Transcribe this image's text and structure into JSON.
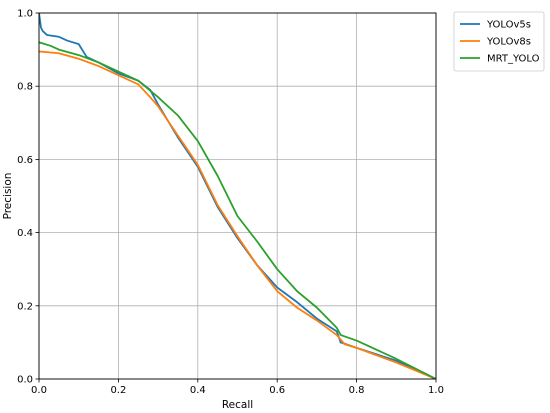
{
  "chart_data": {
    "type": "line",
    "xlabel": "Recall",
    "ylabel": "Precision",
    "xlim": [
      0.0,
      1.0
    ],
    "ylim": [
      0.0,
      1.0
    ],
    "x_ticks": [
      "0.0",
      "0.2",
      "0.4",
      "0.6",
      "0.8",
      "1.0"
    ],
    "y_ticks": [
      "0.0",
      "0.2",
      "0.4",
      "0.6",
      "0.8",
      "1.0"
    ],
    "grid": true,
    "legend_position": "outside top-right",
    "series": [
      {
        "name": "YOLOv5s",
        "color": "#1f77b4",
        "points": [
          [
            0.0,
            1.0
          ],
          [
            0.005,
            0.96
          ],
          [
            0.01,
            0.95
          ],
          [
            0.02,
            0.94
          ],
          [
            0.05,
            0.935
          ],
          [
            0.06,
            0.93
          ],
          [
            0.07,
            0.925
          ],
          [
            0.1,
            0.915
          ],
          [
            0.12,
            0.88
          ],
          [
            0.15,
            0.865
          ],
          [
            0.2,
            0.835
          ],
          [
            0.25,
            0.815
          ],
          [
            0.28,
            0.79
          ],
          [
            0.3,
            0.75
          ],
          [
            0.35,
            0.66
          ],
          [
            0.4,
            0.58
          ],
          [
            0.45,
            0.47
          ],
          [
            0.5,
            0.385
          ],
          [
            0.55,
            0.31
          ],
          [
            0.6,
            0.25
          ],
          [
            0.65,
            0.21
          ],
          [
            0.7,
            0.165
          ],
          [
            0.75,
            0.13
          ],
          [
            0.76,
            0.1
          ],
          [
            0.8,
            0.085
          ],
          [
            0.9,
            0.05
          ],
          [
            1.0,
            0.0
          ]
        ]
      },
      {
        "name": "YOLOv8s",
        "color": "#ff7f0e",
        "points": [
          [
            0.0,
            0.895
          ],
          [
            0.05,
            0.89
          ],
          [
            0.1,
            0.875
          ],
          [
            0.15,
            0.855
          ],
          [
            0.2,
            0.83
          ],
          [
            0.25,
            0.805
          ],
          [
            0.28,
            0.77
          ],
          [
            0.3,
            0.745
          ],
          [
            0.35,
            0.665
          ],
          [
            0.4,
            0.585
          ],
          [
            0.45,
            0.475
          ],
          [
            0.5,
            0.39
          ],
          [
            0.55,
            0.31
          ],
          [
            0.6,
            0.24
          ],
          [
            0.65,
            0.195
          ],
          [
            0.7,
            0.16
          ],
          [
            0.75,
            0.12
          ],
          [
            0.77,
            0.095
          ],
          [
            0.8,
            0.085
          ],
          [
            0.9,
            0.045
          ],
          [
            1.0,
            0.0
          ]
        ]
      },
      {
        "name": "MRT_YOLO",
        "color": "#2ca02c",
        "points": [
          [
            0.0,
            0.92
          ],
          [
            0.03,
            0.91
          ],
          [
            0.05,
            0.9
          ],
          [
            0.1,
            0.885
          ],
          [
            0.15,
            0.865
          ],
          [
            0.2,
            0.84
          ],
          [
            0.25,
            0.815
          ],
          [
            0.3,
            0.77
          ],
          [
            0.35,
            0.72
          ],
          [
            0.4,
            0.65
          ],
          [
            0.45,
            0.555
          ],
          [
            0.5,
            0.445
          ],
          [
            0.55,
            0.375
          ],
          [
            0.6,
            0.3
          ],
          [
            0.65,
            0.24
          ],
          [
            0.7,
            0.195
          ],
          [
            0.75,
            0.14
          ],
          [
            0.76,
            0.12
          ],
          [
            0.8,
            0.105
          ],
          [
            0.9,
            0.055
          ],
          [
            1.0,
            0.0
          ]
        ]
      }
    ]
  }
}
